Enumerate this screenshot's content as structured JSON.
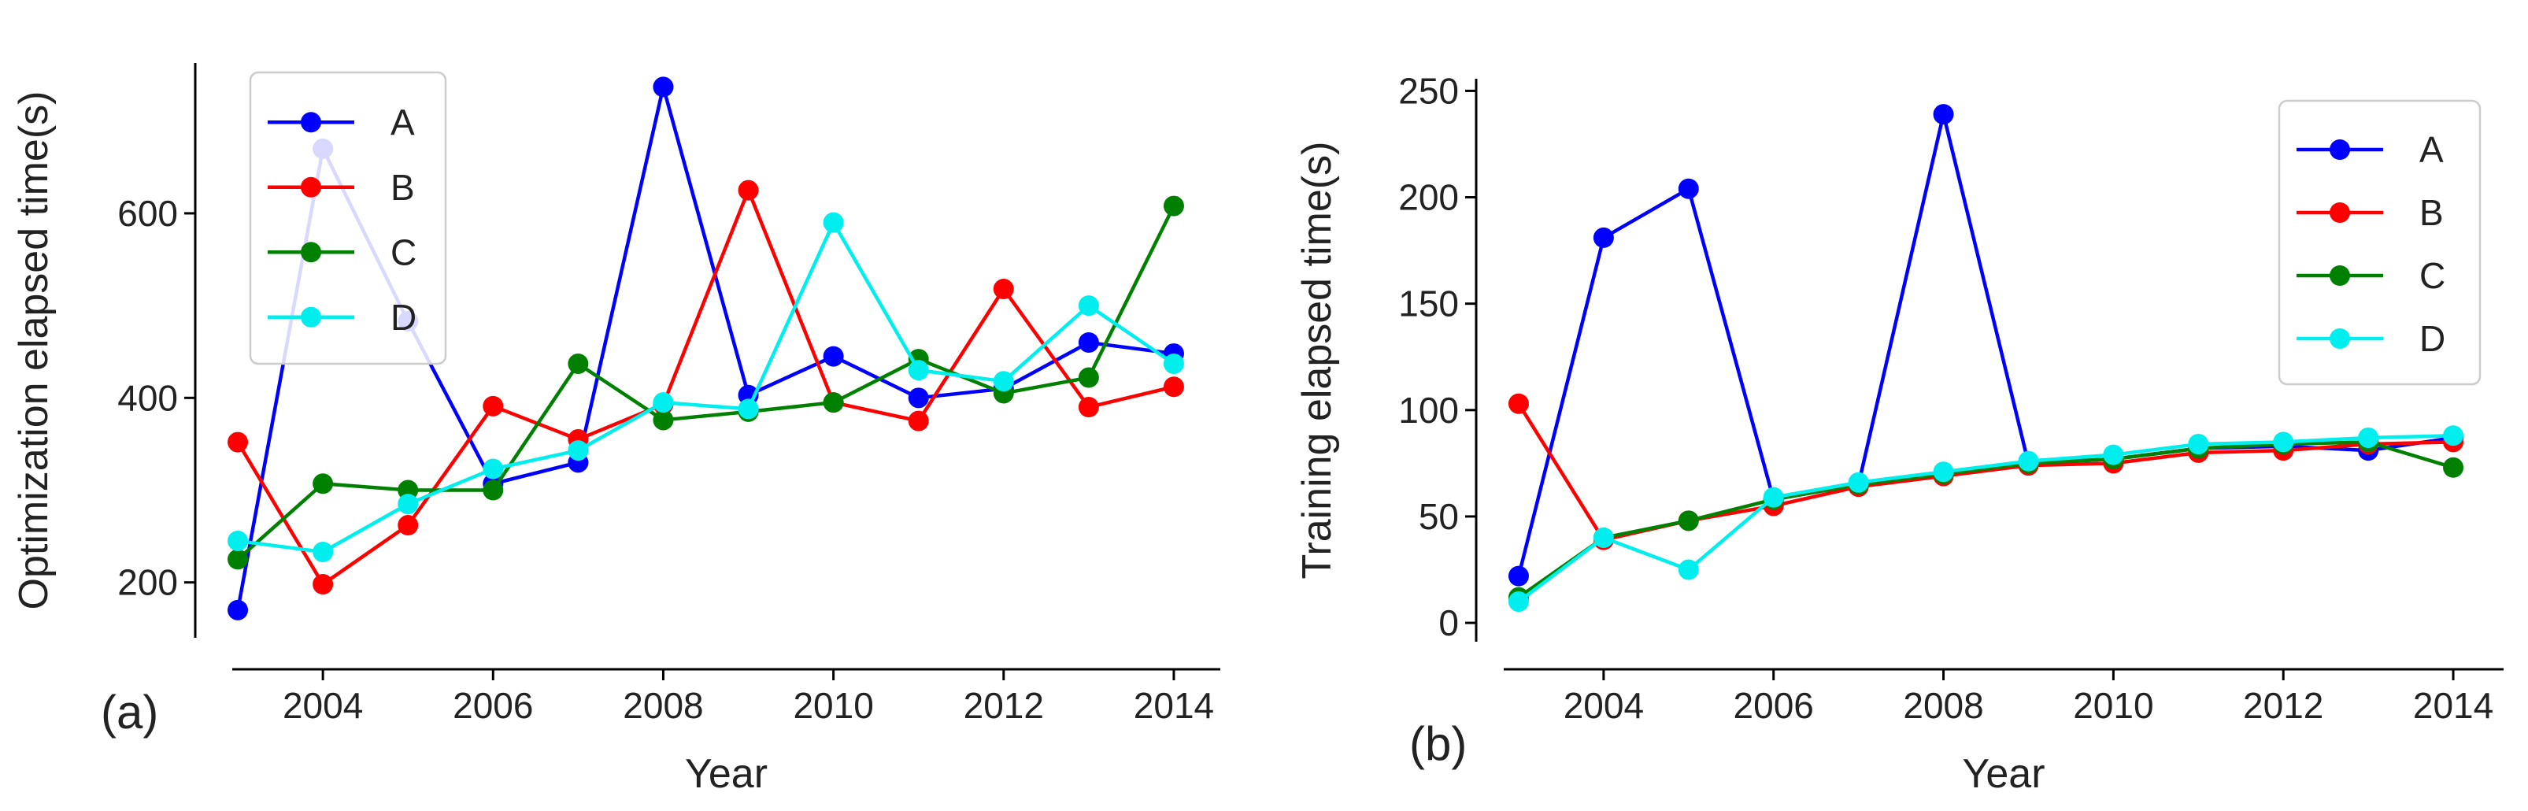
{
  "chart_data": [
    {
      "type": "line",
      "panel_label": "(a)",
      "xlabel": "Year",
      "ylabel": "Optimization elapsed time(s)",
      "x": [
        2003,
        2004,
        2005,
        2006,
        2007,
        2008,
        2009,
        2010,
        2011,
        2012,
        2013,
        2014
      ],
      "xticks": [
        2004,
        2006,
        2008,
        2010,
        2012,
        2014
      ],
      "xlim": [
        2002.5,
        2014.5
      ],
      "yticks": [
        200,
        400,
        600
      ],
      "ylim": [
        140,
        780
      ],
      "legend_position": "top-left",
      "series": [
        {
          "name": "A",
          "color": "#0000ff",
          "values": [
            170,
            670,
            483,
            307,
            330,
            737,
            403,
            445,
            400,
            410,
            460,
            448
          ]
        },
        {
          "name": "B",
          "color": "#ff0000",
          "values": [
            352,
            198,
            262,
            391,
            355,
            393,
            625,
            395,
            375,
            518,
            390,
            412
          ]
        },
        {
          "name": "C",
          "color": "#008000",
          "values": [
            225,
            307,
            300,
            300,
            437,
            376,
            385,
            395,
            442,
            405,
            422,
            608
          ]
        },
        {
          "name": "D",
          "color": "#00eeee",
          "values": [
            245,
            233,
            285,
            323,
            343,
            395,
            388,
            590,
            430,
            418,
            500,
            437
          ]
        }
      ]
    },
    {
      "type": "line",
      "panel_label": "(b)",
      "xlabel": "Year",
      "ylabel": "Training elapsed time(s)",
      "x": [
        2003,
        2004,
        2005,
        2006,
        2007,
        2008,
        2009,
        2010,
        2011,
        2012,
        2013,
        2014
      ],
      "xticks": [
        2004,
        2006,
        2008,
        2010,
        2012,
        2014
      ],
      "xlim": [
        2002.5,
        2014.5
      ],
      "yticks": [
        0,
        50,
        100,
        150,
        200,
        250
      ],
      "ylim": [
        -7,
        252
      ],
      "legend_position": "top-right",
      "series": [
        {
          "name": "A",
          "color": "#0000ff",
          "values": [
            22,
            181,
            204,
            58,
            65,
            239,
            75,
            77,
            82,
            83,
            81,
            87
          ]
        },
        {
          "name": "B",
          "color": "#ff0000",
          "values": [
            103,
            39,
            48,
            55,
            64,
            69,
            74,
            75,
            80,
            81,
            84,
            85
          ]
        },
        {
          "name": "C",
          "color": "#008000",
          "values": [
            12,
            40,
            48,
            58,
            65,
            70,
            75,
            77,
            82,
            84,
            85,
            73
          ]
        },
        {
          "name": "D",
          "color": "#00eeee",
          "values": [
            10,
            40,
            25,
            59,
            66,
            71,
            76,
            79,
            84,
            85,
            87,
            88
          ]
        }
      ]
    }
  ]
}
